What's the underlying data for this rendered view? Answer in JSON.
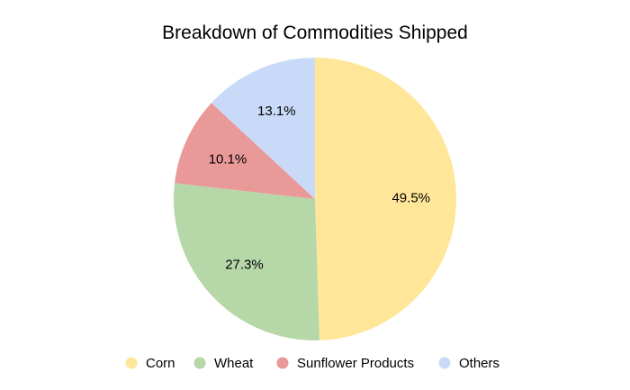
{
  "chart_data": {
    "type": "pie",
    "title": "Breakdown of Commodities Shipped",
    "categories": [
      "Corn",
      "Wheat",
      "Sunflower Products",
      "Others"
    ],
    "values": [
      49.5,
      27.3,
      10.1,
      13.1
    ],
    "labels": [
      "49.5%",
      "27.3%",
      "10.1%",
      "13.1%"
    ],
    "colors": [
      "#FFE699",
      "#B6D7A8",
      "#EA9999",
      "#C9DAF8"
    ],
    "start_angle": "12 o'clock",
    "direction": "clockwise",
    "legend_position": "bottom"
  }
}
